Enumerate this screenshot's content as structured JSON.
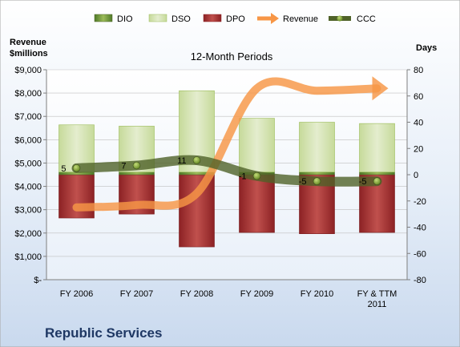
{
  "company": "Republic Services",
  "chart_data": {
    "type": "bar",
    "title": "12-Month Periods",
    "left_axis_label": [
      "Revenue",
      "$millions"
    ],
    "right_axis_label": "Days",
    "categories": [
      "FY 2006",
      "FY 2007",
      "FY 2008",
      "FY 2009",
      "FY 2010",
      "FY & TTM 2011"
    ],
    "left_ticks": [
      "$-",
      "$1,000",
      "$2,000",
      "$3,000",
      "$4,000",
      "$5,000",
      "$6,000",
      "$7,000",
      "$8,000",
      "$9,000"
    ],
    "right_ticks": [
      "-80",
      "-60",
      "-40",
      "-20",
      "0",
      "20",
      "40",
      "60",
      "80"
    ],
    "ylim_left": [
      0,
      9000
    ],
    "ylim_right": [
      -80,
      80
    ],
    "legend": [
      "DIO",
      "DSO",
      "DPO",
      "Revenue",
      "CCC"
    ],
    "legend_position": "top",
    "series": [
      {
        "name": "DIO",
        "axis": "right",
        "values": [
          2,
          2,
          2,
          2,
          2,
          2
        ]
      },
      {
        "name": "DSO",
        "axis": "right",
        "values": [
          36,
          35,
          62,
          41,
          38,
          37
        ]
      },
      {
        "name": "DPO",
        "axis": "right",
        "values": [
          -33,
          -30,
          -55,
          -44,
          -45,
          -44
        ]
      },
      {
        "name": "Revenue",
        "axis": "left",
        "values": [
          3100,
          3200,
          3700,
          8200,
          8100,
          8200
        ]
      },
      {
        "name": "CCC",
        "axis": "right",
        "values": [
          5,
          7,
          11,
          -1,
          -5,
          -5
        ]
      }
    ],
    "data_labels": [
      "5",
      "7",
      "11",
      "-1",
      "-5",
      "-5"
    ],
    "colors": {
      "DIO": "#4f7a28",
      "DSO": "#d7e4bd",
      "DPO": "#a5282b",
      "Revenue": "#f79646",
      "CCC": "#4f6228"
    }
  }
}
